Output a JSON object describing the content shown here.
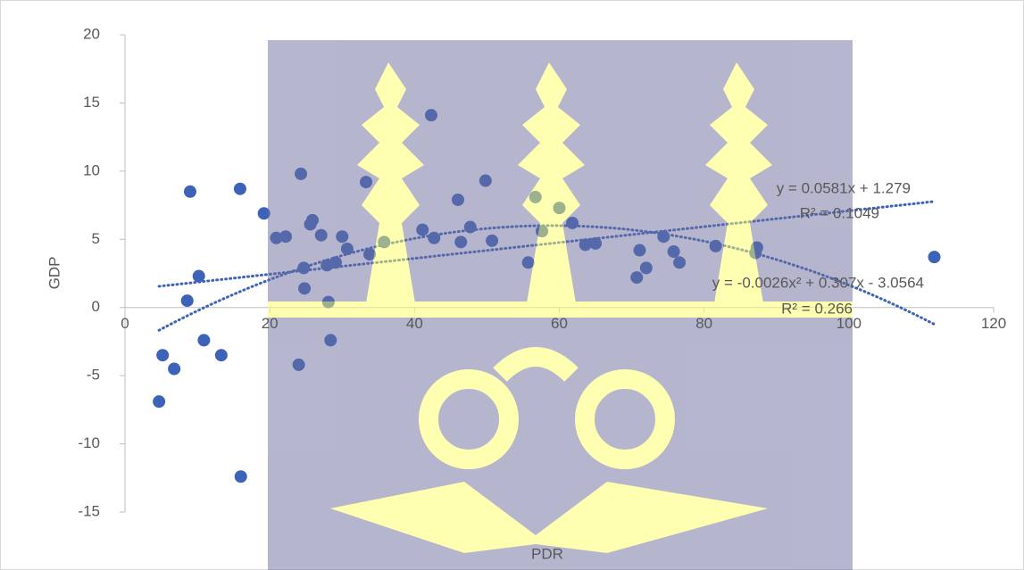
{
  "chart_data": {
    "type": "scatter",
    "x_label": "PDR",
    "y_label": "GDP",
    "color": "#3d63b8",
    "x": [
      4.7,
      5.2,
      6.8,
      8.6,
      9.0,
      10.2,
      10.9,
      13.3,
      15.9,
      16.0,
      19.2,
      20.9,
      22.2,
      24.0,
      24.3,
      24.7,
      24.8,
      25.6,
      25.9,
      27.1,
      27.9,
      28.1,
      28.4,
      29.1,
      30.0,
      30.7,
      33.3,
      33.8,
      35.8,
      41.1,
      42.3,
      42.7,
      46.0,
      46.4,
      47.7,
      49.8,
      50.7,
      55.7,
      56.7,
      57.6,
      60.0,
      61.8,
      63.6,
      65.0,
      70.7,
      71.1,
      72.0,
      74.4,
      75.8,
      76.6,
      81.6,
      87.1,
      87.3,
      111.8
    ],
    "values": [
      -6.9,
      -3.5,
      -4.5,
      0.5,
      8.5,
      2.3,
      -2.4,
      -3.5,
      8.7,
      -12.4,
      6.9,
      5.1,
      5.2,
      -4.2,
      9.8,
      2.9,
      1.4,
      6.1,
      6.4,
      5.3,
      3.1,
      0.4,
      -2.4,
      3.3,
      5.2,
      4.3,
      9.2,
      3.9,
      4.8,
      5.7,
      14.1,
      5.1,
      7.9,
      4.8,
      5.9,
      9.3,
      4.9,
      3.3,
      8.1,
      5.6,
      7.3,
      6.2,
      4.6,
      4.7,
      2.2,
      4.2,
      2.9,
      5.2,
      4.1,
      3.3,
      4.5,
      4.0,
      4.4,
      3.7
    ],
    "xlim": [
      0,
      120
    ],
    "xticks": [
      0,
      20,
      40,
      60,
      80,
      100,
      120
    ],
    "ylim": [
      -15,
      20
    ],
    "yticks": [
      -15,
      -10,
      -5,
      0,
      5,
      10,
      15,
      20
    ],
    "trendlines": [
      {
        "kind": "linear",
        "coefficients": [
          0.0581,
          1.279
        ],
        "equation": "y = 0.0581x + 1.279",
        "r2": "R² = 0.1049"
      },
      {
        "kind": "polynomial",
        "coefficients": [
          -0.0026,
          0.307,
          -3.0564
        ],
        "equation": "y = -0.0026x² + 0.307x - 3.0564",
        "r2": "R² = 0.266"
      }
    ]
  }
}
